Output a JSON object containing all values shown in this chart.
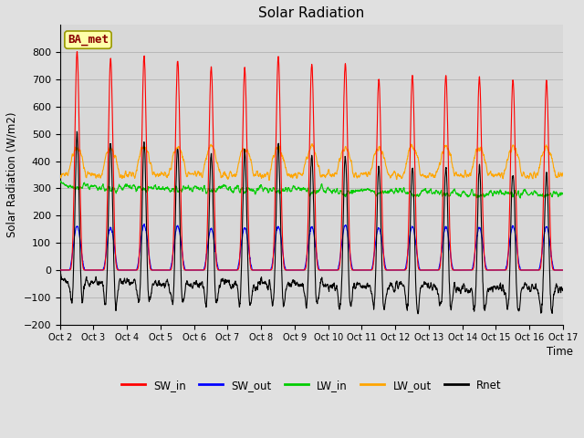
{
  "title": "Solar Radiation",
  "ylabel": "Solar Radiation (W/m2)",
  "xlabel": "Time",
  "ylim": [
    -200,
    900
  ],
  "yticks": [
    -200,
    -100,
    0,
    100,
    200,
    300,
    400,
    500,
    600,
    700,
    800
  ],
  "xtick_labels": [
    "Oct 2",
    "Oct 3",
    "Oct 4",
    "Oct 5",
    "Oct 6",
    "Oct 7",
    "Oct 8",
    "Oct 9",
    "Oct 10",
    "Oct 11",
    "Oct 12",
    "Oct 13",
    "Oct 14",
    "Oct 15",
    "Oct 16",
    "Oct 17"
  ],
  "station_label": "BA_met",
  "fig_bg": "#e0e0e0",
  "ax_bg": "#d8d8d8",
  "colors": {
    "SW_in": "#ff0000",
    "SW_out": "#0000ff",
    "LW_in": "#00cc00",
    "LW_out": "#ffa500",
    "Rnet": "#000000"
  },
  "n_days": 15,
  "pts_per_day": 144,
  "sw_in_peaks": [
    800,
    775,
    785,
    770,
    745,
    740,
    785,
    755,
    760,
    700,
    715,
    715,
    705,
    700,
    695
  ],
  "sw_out_peaks": [
    160,
    155,
    165,
    162,
    152,
    155,
    160,
    158,
    165,
    155,
    160,
    158,
    155,
    162,
    160
  ],
  "lw_in_base": 300,
  "lw_out_base": 350,
  "grid_color": "#c8c8c8",
  "linewidth": 0.8
}
